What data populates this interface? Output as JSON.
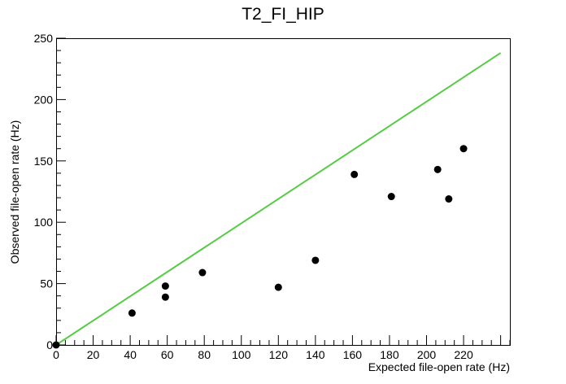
{
  "chart_data": {
    "type": "scatter",
    "title": "T2_FI_HIP",
    "xlabel": "Expected file-open rate (Hz)",
    "ylabel": "Observed file-open rate (Hz)",
    "xlim": [
      0,
      245
    ],
    "ylim": [
      0,
      250
    ],
    "x_ticks": [
      0,
      20,
      40,
      60,
      80,
      100,
      120,
      140,
      160,
      180,
      200,
      220
    ],
    "y_ticks": [
      0,
      50,
      100,
      150,
      200,
      250
    ],
    "grid": false,
    "series": [
      {
        "marker": "circle",
        "color": "#000000",
        "points": [
          {
            "x": 0,
            "y": 0
          },
          {
            "x": 41,
            "y": 26
          },
          {
            "x": 59,
            "y": 39
          },
          {
            "x": 59,
            "y": 48
          },
          {
            "x": 79,
            "y": 59
          },
          {
            "x": 120,
            "y": 47
          },
          {
            "x": 140,
            "y": 69
          },
          {
            "x": 161,
            "y": 139
          },
          {
            "x": 181,
            "y": 121
          },
          {
            "x": 206,
            "y": 143
          },
          {
            "x": 212,
            "y": 119
          },
          {
            "x": 220,
            "y": 160
          }
        ]
      }
    ],
    "reference_line": {
      "color": "#55cc44",
      "x": [
        0,
        240
      ],
      "y": [
        0,
        238
      ]
    }
  }
}
